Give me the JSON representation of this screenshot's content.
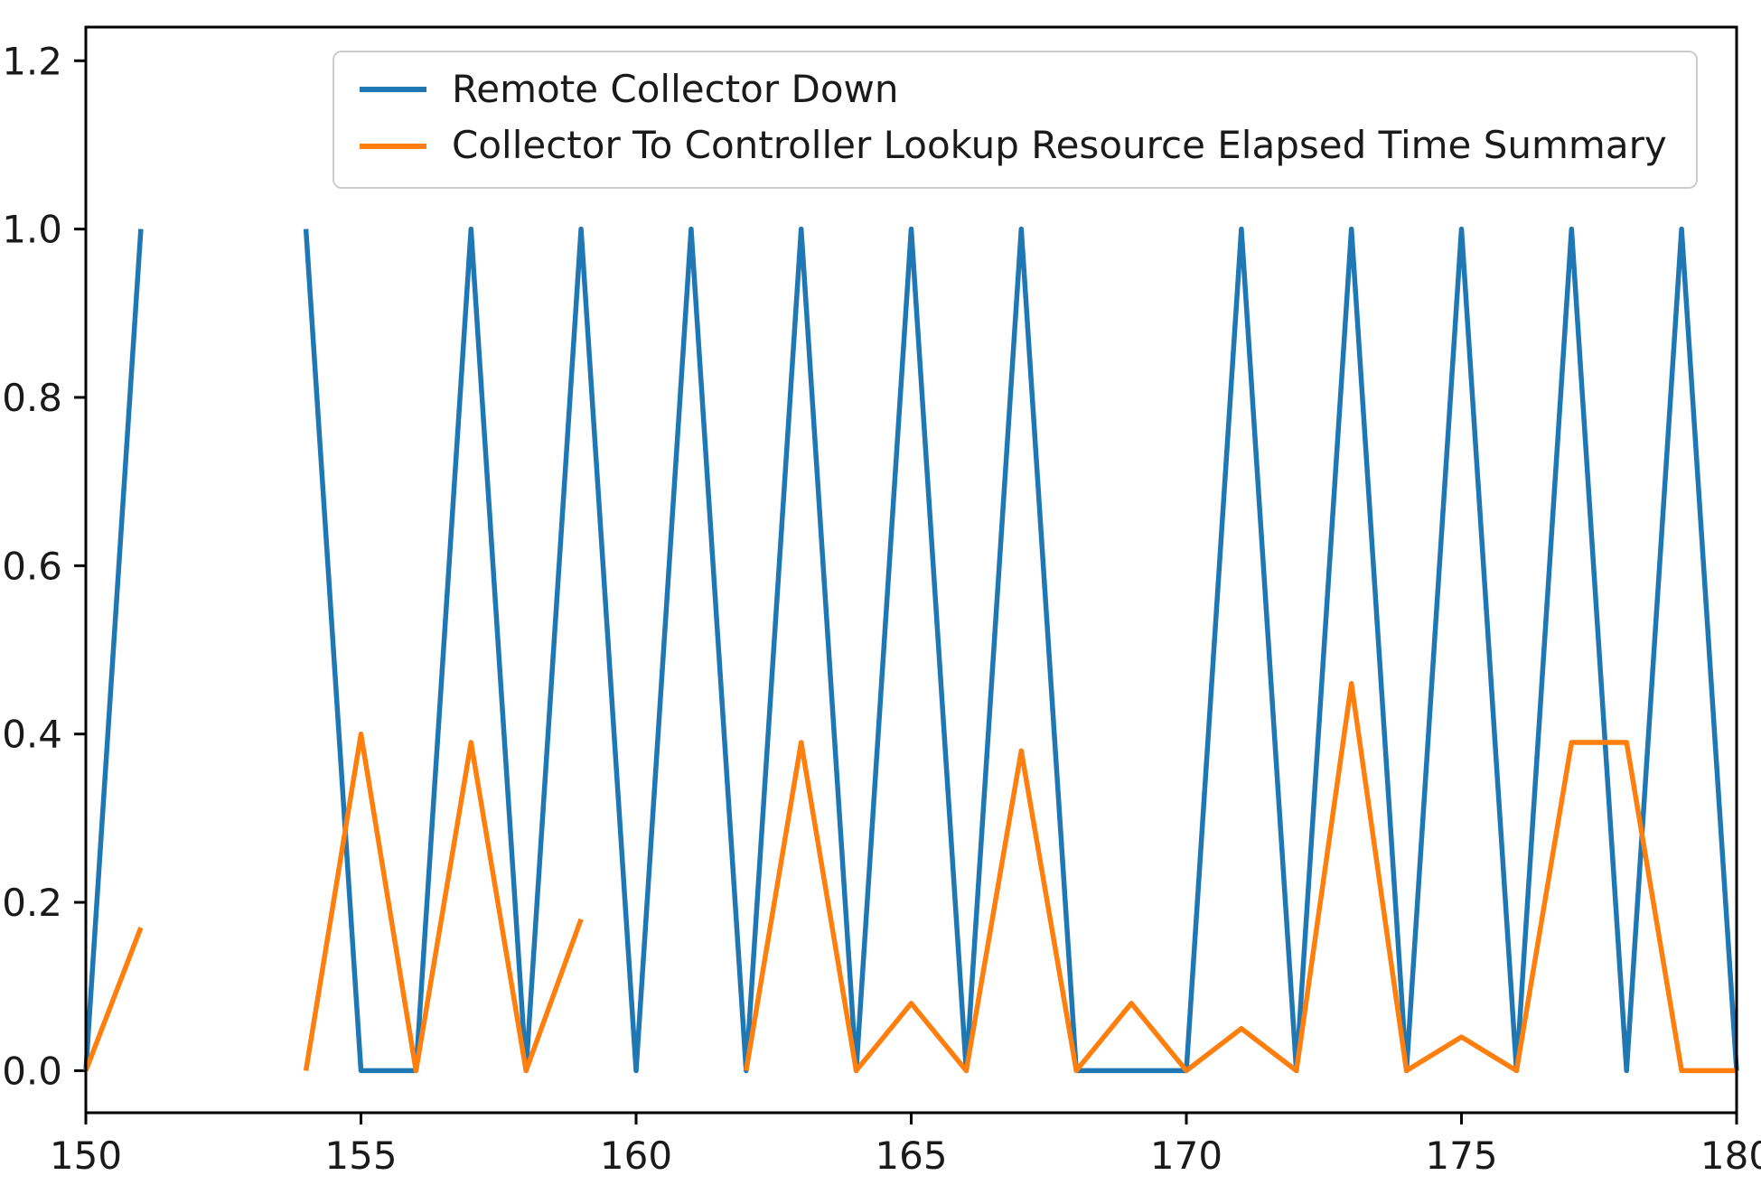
{
  "figure": {
    "background": "#ffffff"
  },
  "chart_data": {
    "type": "line",
    "title": "",
    "xlabel": "",
    "ylabel": "",
    "grid": false,
    "legend_position": "upper left",
    "xlim": [
      150,
      180
    ],
    "ylim": [
      -0.05,
      1.24
    ],
    "x_tick_values": [
      150,
      155,
      160,
      165,
      170,
      175,
      180
    ],
    "x_tick_labels": [
      "150",
      "155",
      "160",
      "165",
      "170",
      "175",
      "180"
    ],
    "y_tick_values": [
      0.0,
      0.2,
      0.4,
      0.6,
      0.8,
      1.0,
      1.2
    ],
    "y_tick_labels": [
      "0.0",
      "0.2",
      "0.4",
      "0.6",
      "0.8",
      "1.0",
      "1.2"
    ],
    "x": [
      150,
      151,
      152,
      153,
      154,
      155,
      156,
      157,
      158,
      159,
      160,
      161,
      162,
      163,
      164,
      165,
      166,
      167,
      168,
      169,
      170,
      171,
      172,
      173,
      174,
      175,
      176,
      177,
      178,
      179,
      180
    ],
    "series": [
      {
        "name": "Remote Collector Down",
        "color": "#1f77b4",
        "y": [
          0,
          1,
          null,
          null,
          1,
          0,
          0,
          1,
          0,
          1,
          0,
          1,
          0,
          1,
          0,
          1,
          0,
          1,
          0,
          0,
          0,
          1,
          0,
          1,
          0,
          1,
          0,
          1,
          0,
          1,
          0
        ]
      },
      {
        "name": "Collector To Controller Lookup Resource Elapsed Time Summary",
        "color": "#ff7f0e",
        "y": [
          0,
          0.17,
          null,
          null,
          0,
          0.4,
          0,
          0.39,
          0,
          0.18,
          null,
          null,
          0,
          0.39,
          0,
          0.08,
          0,
          0.38,
          0,
          0.08,
          0,
          0.05,
          0,
          0.46,
          0,
          0.04,
          0,
          0.39,
          0.39,
          0,
          0
        ]
      }
    ]
  },
  "axes": {
    "frame_color": "#000000",
    "tick_color": "#000000",
    "tick_label_color": "#1a1a1a"
  }
}
